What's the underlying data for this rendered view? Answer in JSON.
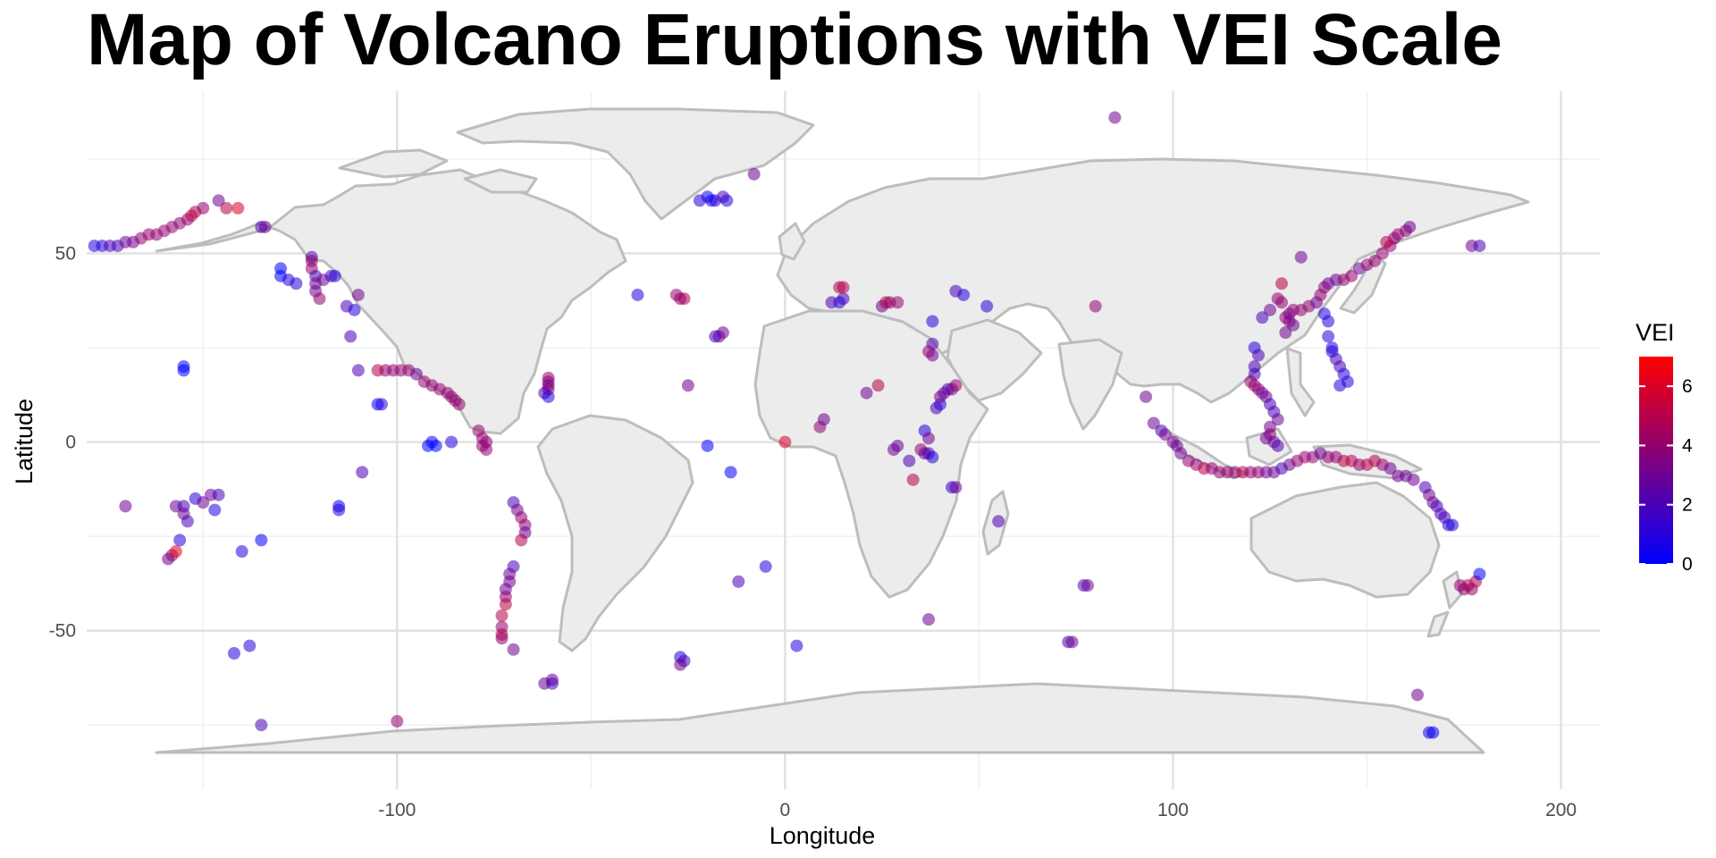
{
  "chart_data": {
    "type": "scatter",
    "title": "Map of Volcano Eruptions with VEI Scale",
    "xlabel": "Longitude",
    "ylabel": "Latitude",
    "xlim": [
      -180,
      210
    ],
    "ylim": [
      -92,
      93
    ],
    "x_ticks": [
      -100,
      0,
      100,
      200
    ],
    "y_ticks": [
      -50,
      0,
      50
    ],
    "x_minor": [
      -150,
      -50,
      50,
      150
    ],
    "y_minor": [
      -75,
      -25,
      25,
      75
    ],
    "grid": true,
    "legend": {
      "title": "VEI",
      "placement": "right",
      "min": 0,
      "max": 7,
      "ticks": [
        0,
        2,
        4,
        6
      ]
    },
    "color_scale": {
      "low": "#0000FF",
      "high": "#FF0000"
    },
    "point_fields": [
      "lon",
      "lat",
      "vei"
    ],
    "points": [
      [
        -178,
        52,
        1
      ],
      [
        -176,
        52,
        1
      ],
      [
        -174,
        52,
        2
      ],
      [
        -172,
        52,
        2
      ],
      [
        -170,
        53,
        3
      ],
      [
        -168,
        53,
        3
      ],
      [
        -166,
        54,
        4
      ],
      [
        -164,
        55,
        4
      ],
      [
        -162,
        55,
        4
      ],
      [
        -160,
        56,
        4
      ],
      [
        -158,
        57,
        4
      ],
      [
        -156,
        58,
        4
      ],
      [
        -154,
        59,
        4
      ],
      [
        -153,
        60,
        5
      ],
      [
        -152,
        61,
        5
      ],
      [
        -150,
        62,
        4
      ],
      [
        -146,
        64,
        3
      ],
      [
        -144,
        62,
        5
      ],
      [
        -141,
        62,
        6
      ],
      [
        -135,
        57,
        2
      ],
      [
        -134,
        57,
        3
      ],
      [
        -122,
        49,
        2
      ],
      [
        -122,
        48,
        4
      ],
      [
        -122,
        46,
        4
      ],
      [
        -121,
        44,
        2
      ],
      [
        -121,
        42,
        3
      ],
      [
        -121,
        40,
        3
      ],
      [
        -120,
        38,
        4
      ],
      [
        -119,
        43,
        3
      ],
      [
        -117,
        44,
        2
      ],
      [
        -116,
        44,
        1
      ],
      [
        -113,
        36,
        2
      ],
      [
        -111,
        35,
        1
      ],
      [
        -110,
        39,
        3
      ],
      [
        -130,
        46,
        0
      ],
      [
        -130,
        44,
        0
      ],
      [
        -128,
        43,
        1
      ],
      [
        -126,
        42,
        1
      ],
      [
        -155,
        19,
        0
      ],
      [
        -155,
        20,
        0
      ],
      [
        -105,
        19,
        5
      ],
      [
        -103,
        19,
        4
      ],
      [
        -101,
        19,
        4
      ],
      [
        -99,
        19,
        4
      ],
      [
        -97,
        19,
        4
      ],
      [
        -95,
        18,
        3
      ],
      [
        -93,
        16,
        4
      ],
      [
        -91,
        15,
        4
      ],
      [
        -89,
        14,
        4
      ],
      [
        -87,
        13,
        4
      ],
      [
        -86,
        12,
        4
      ],
      [
        -85,
        11,
        4
      ],
      [
        -84,
        10,
        4
      ],
      [
        -105,
        10,
        0
      ],
      [
        -104,
        10,
        1
      ],
      [
        -110,
        19,
        2
      ],
      [
        -112,
        28,
        2
      ],
      [
        -91,
        0,
        0
      ],
      [
        -90,
        -1,
        0
      ],
      [
        -92,
        -1,
        0
      ],
      [
        -86,
        0,
        1
      ],
      [
        -79,
        3,
        4
      ],
      [
        -78,
        1,
        4
      ],
      [
        -77,
        0,
        4
      ],
      [
        -78,
        -1,
        4
      ],
      [
        -77,
        -2,
        4
      ],
      [
        -61,
        17,
        4
      ],
      [
        -61,
        16,
        4
      ],
      [
        -61,
        15,
        3
      ],
      [
        -61,
        14,
        4
      ],
      [
        -62,
        13,
        2
      ],
      [
        -61,
        12,
        1
      ],
      [
        -70,
        -16,
        2
      ],
      [
        -69,
        -18,
        3
      ],
      [
        -68,
        -20,
        4
      ],
      [
        -67,
        -22,
        4
      ],
      [
        -67,
        -24,
        3
      ],
      [
        -68,
        -26,
        5
      ],
      [
        -70,
        -33,
        2
      ],
      [
        -71,
        -35,
        3
      ],
      [
        -71,
        -37,
        3
      ],
      [
        -72,
        -39,
        3
      ],
      [
        -72,
        -41,
        4
      ],
      [
        -72,
        -43,
        5
      ],
      [
        -73,
        -46,
        5
      ],
      [
        -73,
        -49,
        4
      ],
      [
        -73,
        -51,
        5
      ],
      [
        -73,
        -52,
        4
      ],
      [
        -70,
        -55,
        3
      ],
      [
        -60,
        -63,
        3
      ],
      [
        -28,
        39,
        4
      ],
      [
        -26,
        38,
        5
      ],
      [
        -27,
        38,
        4
      ],
      [
        -38,
        39,
        1
      ],
      [
        -17,
        28,
        3
      ],
      [
        -16,
        29,
        3
      ],
      [
        -18,
        28,
        2
      ],
      [
        -25,
        15,
        3
      ],
      [
        -19,
        64,
        1
      ],
      [
        -18,
        64,
        1
      ],
      [
        -20,
        65,
        0
      ],
      [
        -22,
        64,
        1
      ],
      [
        -16,
        65,
        2
      ],
      [
        -15,
        64,
        1
      ],
      [
        -8,
        71,
        3
      ],
      [
        -14,
        -8,
        0
      ],
      [
        -20,
        -1,
        0
      ],
      [
        -12,
        -37,
        2
      ],
      [
        -5,
        -33,
        1
      ],
      [
        3,
        -54,
        1
      ],
      [
        -27,
        -57,
        1
      ],
      [
        -26,
        -58,
        2
      ],
      [
        -27,
        -59,
        3
      ],
      [
        0,
        0,
        6
      ],
      [
        9,
        4,
        4
      ],
      [
        10,
        6,
        3
      ],
      [
        15,
        41,
        5
      ],
      [
        14,
        41,
        5
      ],
      [
        15,
        38,
        2
      ],
      [
        14,
        37,
        1
      ],
      [
        12,
        37,
        2
      ],
      [
        25,
        36,
        3
      ],
      [
        26,
        37,
        5
      ],
      [
        27,
        37,
        4
      ],
      [
        29,
        37,
        4
      ],
      [
        21,
        13,
        3
      ],
      [
        24,
        15,
        5
      ],
      [
        28,
        -2,
        3
      ],
      [
        29,
        -1,
        3
      ],
      [
        32,
        -5,
        2
      ],
      [
        33,
        -10,
        5
      ],
      [
        35,
        -2,
        4
      ],
      [
        36,
        -3,
        3
      ],
      [
        37,
        -3,
        2
      ],
      [
        38,
        -4,
        1
      ],
      [
        36,
        3,
        1
      ],
      [
        37,
        1,
        3
      ],
      [
        39,
        9,
        2
      ],
      [
        40,
        10,
        1
      ],
      [
        40,
        12,
        3
      ],
      [
        41,
        13,
        3
      ],
      [
        42,
        14,
        2
      ],
      [
        43,
        14,
        3
      ],
      [
        44,
        15,
        4
      ],
      [
        38,
        32,
        1
      ],
      [
        38,
        26,
        2
      ],
      [
        38,
        23,
        3
      ],
      [
        37,
        24,
        4
      ],
      [
        43,
        -12,
        1
      ],
      [
        44,
        -12,
        3
      ],
      [
        55,
        -21,
        2
      ],
      [
        44,
        40,
        2
      ],
      [
        46,
        39,
        1
      ],
      [
        52,
        36,
        1
      ],
      [
        80,
        36,
        4
      ],
      [
        77,
        -38,
        2
      ],
      [
        78,
        -38,
        3
      ],
      [
        73,
        -53,
        2
      ],
      [
        74,
        -53,
        3
      ],
      [
        37,
        -47,
        3
      ],
      [
        85,
        86,
        3
      ],
      [
        93,
        12,
        3
      ],
      [
        95,
        5,
        3
      ],
      [
        97,
        3,
        2
      ],
      [
        98,
        2,
        3
      ],
      [
        100,
        0,
        3
      ],
      [
        101,
        -1,
        3
      ],
      [
        102,
        -3,
        3
      ],
      [
        104,
        -5,
        4
      ],
      [
        106,
        -6,
        4
      ],
      [
        108,
        -7,
        5
      ],
      [
        110,
        -7,
        4
      ],
      [
        112,
        -8,
        4
      ],
      [
        114,
        -8,
        4
      ],
      [
        116,
        -8,
        4
      ],
      [
        118,
        -8,
        5
      ],
      [
        120,
        -8,
        4
      ],
      [
        122,
        -8,
        4
      ],
      [
        124,
        -8,
        3
      ],
      [
        126,
        -8,
        3
      ],
      [
        128,
        -7,
        2
      ],
      [
        130,
        -6,
        3
      ],
      [
        132,
        -5,
        4
      ],
      [
        134,
        -4,
        4
      ],
      [
        136,
        -4,
        4
      ],
      [
        138,
        -3,
        3
      ],
      [
        140,
        -4,
        4
      ],
      [
        142,
        -4,
        4
      ],
      [
        144,
        -5,
        5
      ],
      [
        146,
        -5,
        5
      ],
      [
        148,
        -6,
        4
      ],
      [
        150,
        -6,
        5
      ],
      [
        152,
        -5,
        5
      ],
      [
        154,
        -6,
        4
      ],
      [
        156,
        -7,
        3
      ],
      [
        158,
        -9,
        3
      ],
      [
        160,
        -9,
        3
      ],
      [
        162,
        -10,
        3
      ],
      [
        165,
        -12,
        2
      ],
      [
        166,
        -14,
        3
      ],
      [
        167,
        -16,
        3
      ],
      [
        168,
        -17,
        2
      ],
      [
        169,
        -19,
        2
      ],
      [
        170,
        -20,
        2
      ],
      [
        171,
        -22,
        1
      ],
      [
        172,
        -22,
        1
      ],
      [
        121,
        25,
        1
      ],
      [
        122,
        23,
        2
      ],
      [
        121,
        20,
        2
      ],
      [
        121,
        18,
        2
      ],
      [
        120,
        16,
        4
      ],
      [
        121,
        15,
        4
      ],
      [
        122,
        14,
        4
      ],
      [
        123,
        13,
        3
      ],
      [
        124,
        12,
        3
      ],
      [
        125,
        10,
        2
      ],
      [
        126,
        8,
        2
      ],
      [
        127,
        6,
        3
      ],
      [
        125,
        4,
        3
      ],
      [
        125,
        2,
        4
      ],
      [
        126,
        0,
        3
      ],
      [
        127,
        -1,
        2
      ],
      [
        124,
        1,
        3
      ],
      [
        129,
        33,
        4
      ],
      [
        130,
        32,
        4
      ],
      [
        131,
        31,
        3
      ],
      [
        129,
        29,
        3
      ],
      [
        130,
        34,
        3
      ],
      [
        131,
        35,
        4
      ],
      [
        133,
        35,
        4
      ],
      [
        135,
        36,
        4
      ],
      [
        137,
        37,
        3
      ],
      [
        138,
        39,
        4
      ],
      [
        139,
        41,
        4
      ],
      [
        140,
        42,
        3
      ],
      [
        142,
        43,
        3
      ],
      [
        144,
        43,
        4
      ],
      [
        146,
        44,
        4
      ],
      [
        148,
        46,
        3
      ],
      [
        150,
        47,
        4
      ],
      [
        152,
        48,
        4
      ],
      [
        154,
        50,
        4
      ],
      [
        156,
        52,
        4
      ],
      [
        157,
        54,
        4
      ],
      [
        158,
        55,
        4
      ],
      [
        160,
        56,
        4
      ],
      [
        161,
        57,
        3
      ],
      [
        155,
        53,
        5
      ],
      [
        139,
        34,
        1
      ],
      [
        140,
        32,
        1
      ],
      [
        140,
        28,
        1
      ],
      [
        141,
        25,
        1
      ],
      [
        142,
        22,
        2
      ],
      [
        143,
        20,
        2
      ],
      [
        144,
        18,
        1
      ],
      [
        145,
        16,
        1
      ],
      [
        143,
        15,
        1
      ],
      [
        141,
        24,
        1
      ],
      [
        133,
        49,
        3
      ],
      [
        128,
        42,
        5
      ],
      [
        127,
        38,
        4
      ],
      [
        125,
        35,
        3
      ],
      [
        123,
        33,
        2
      ],
      [
        128,
        37,
        4
      ],
      [
        177,
        52,
        3
      ],
      [
        179,
        52,
        2
      ],
      [
        175,
        -39,
        4
      ],
      [
        176,
        -38,
        5
      ],
      [
        177,
        -39,
        4
      ],
      [
        178,
        -37,
        5
      ],
      [
        179,
        -35,
        0
      ],
      [
        174,
        -38,
        4
      ],
      [
        166,
        -77,
        1
      ],
      [
        167,
        -77,
        0
      ],
      [
        163,
        -67,
        3
      ],
      [
        -157,
        -17,
        3
      ],
      [
        -155,
        -17,
        2
      ],
      [
        -155,
        -19,
        3
      ],
      [
        -154,
        -21,
        2
      ],
      [
        -152,
        -15,
        1
      ],
      [
        -150,
        -16,
        3
      ],
      [
        -148,
        -14,
        3
      ],
      [
        -146,
        -14,
        2
      ],
      [
        -156,
        -26,
        1
      ],
      [
        -158,
        -30,
        5
      ],
      [
        -157,
        -29,
        6
      ],
      [
        -159,
        -31,
        3
      ],
      [
        -170,
        -17,
        3
      ],
      [
        -147,
        -18,
        1
      ],
      [
        -140,
        -29,
        1
      ],
      [
        -135,
        -26,
        0
      ],
      [
        -115,
        -17,
        0
      ],
      [
        -115,
        -18,
        1
      ],
      [
        -109,
        -8,
        2
      ],
      [
        -142,
        -56,
        1
      ],
      [
        -138,
        -54,
        1
      ],
      [
        -135,
        -75,
        2
      ],
      [
        -100,
        -74,
        4
      ],
      [
        -62,
        -64,
        3
      ],
      [
        -60,
        -64,
        2
      ]
    ]
  }
}
